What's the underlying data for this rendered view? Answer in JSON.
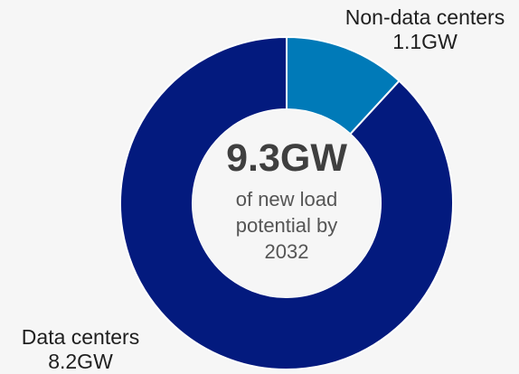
{
  "chart_data": {
    "type": "pie",
    "donut": true,
    "total_label": "9.3GW",
    "caption": "of new load potential by 2032",
    "slices": [
      {
        "name": "Non-data centers",
        "value": 1.1,
        "display": "1.1GW",
        "color": "#007ab8"
      },
      {
        "name": "Data centers",
        "value": 8.2,
        "display": "8.2GW",
        "color": "#031a7e"
      }
    ],
    "legend": "none",
    "background": "#f6f6f6"
  }
}
